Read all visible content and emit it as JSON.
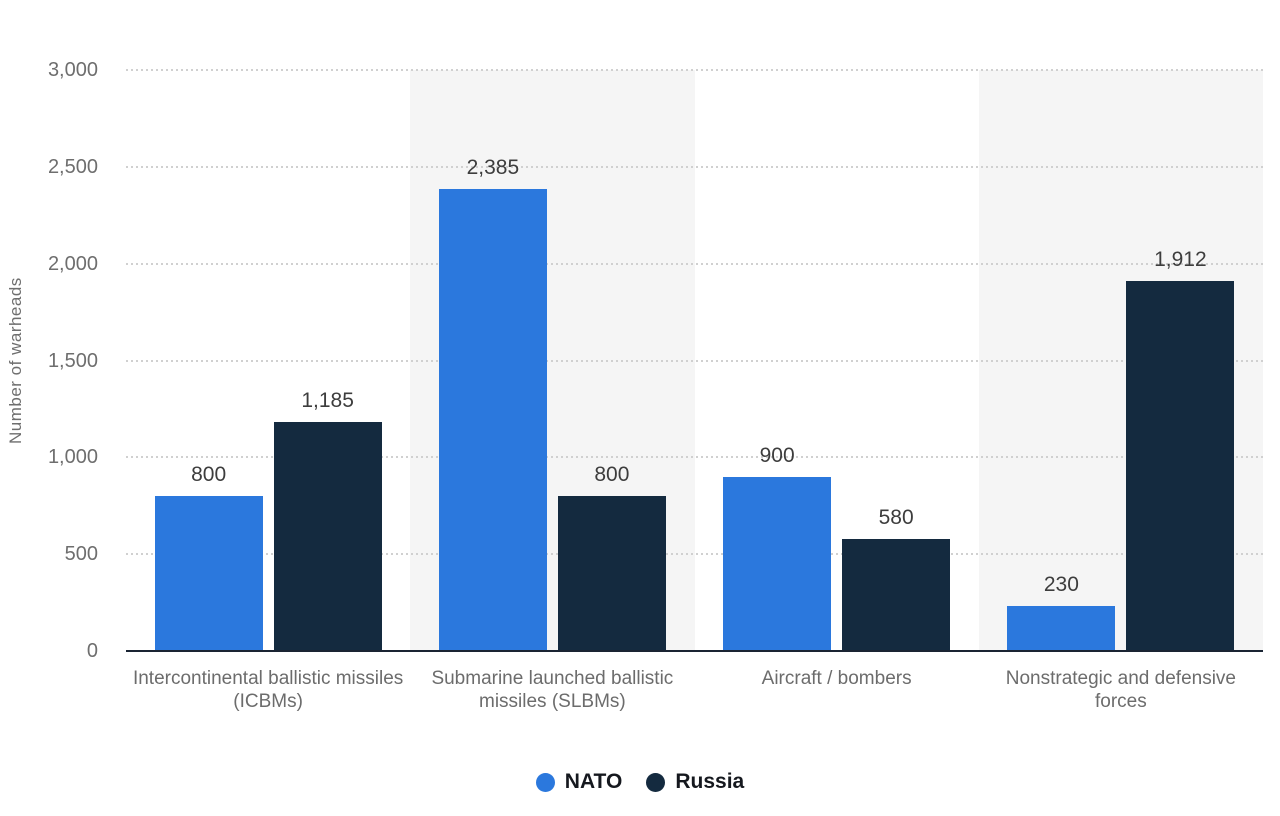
{
  "chart_data": {
    "type": "bar",
    "title": "",
    "xlabel": "",
    "ylabel": "Number of warheads",
    "ylim": [
      0,
      3000
    ],
    "yticks": [
      0,
      500,
      1000,
      1500,
      2000,
      2500,
      3000
    ],
    "ytick_labels": [
      "0",
      "500",
      "1,000",
      "1,500",
      "2,000",
      "2,500",
      "3,000"
    ],
    "grid": "horizontal-dotted",
    "legend_position": "bottom-center",
    "plot_bands_on_categories": [
      1,
      3
    ],
    "categories": [
      "Intercontinental ballistic missiles (ICBMs)",
      "Submarine launched ballistic missiles (SLBMs)",
      "Aircraft / bombers",
      "Nonstrategic and defensive forces"
    ],
    "series": [
      {
        "name": "NATO",
        "color": "#2b78dd",
        "values": [
          800,
          2385,
          900,
          230
        ],
        "value_labels": [
          "800",
          "2,385",
          "900",
          "230"
        ]
      },
      {
        "name": "Russia",
        "color": "#142a3f",
        "values": [
          1185,
          800,
          580,
          1912
        ],
        "value_labels": [
          "1,185",
          "800",
          "580",
          "1,912"
        ]
      }
    ]
  },
  "colors": {
    "background": "#ffffff",
    "plot_band": "#f5f5f5",
    "gridline": "#d0d0d0",
    "axis_line": "#1a2433",
    "tick_label": "#6e6e6e",
    "category_label": "#6c6c6c",
    "value_label": "#3d3d3d",
    "axis_title": "#6e6e6e",
    "legend_text": "#15181e"
  }
}
